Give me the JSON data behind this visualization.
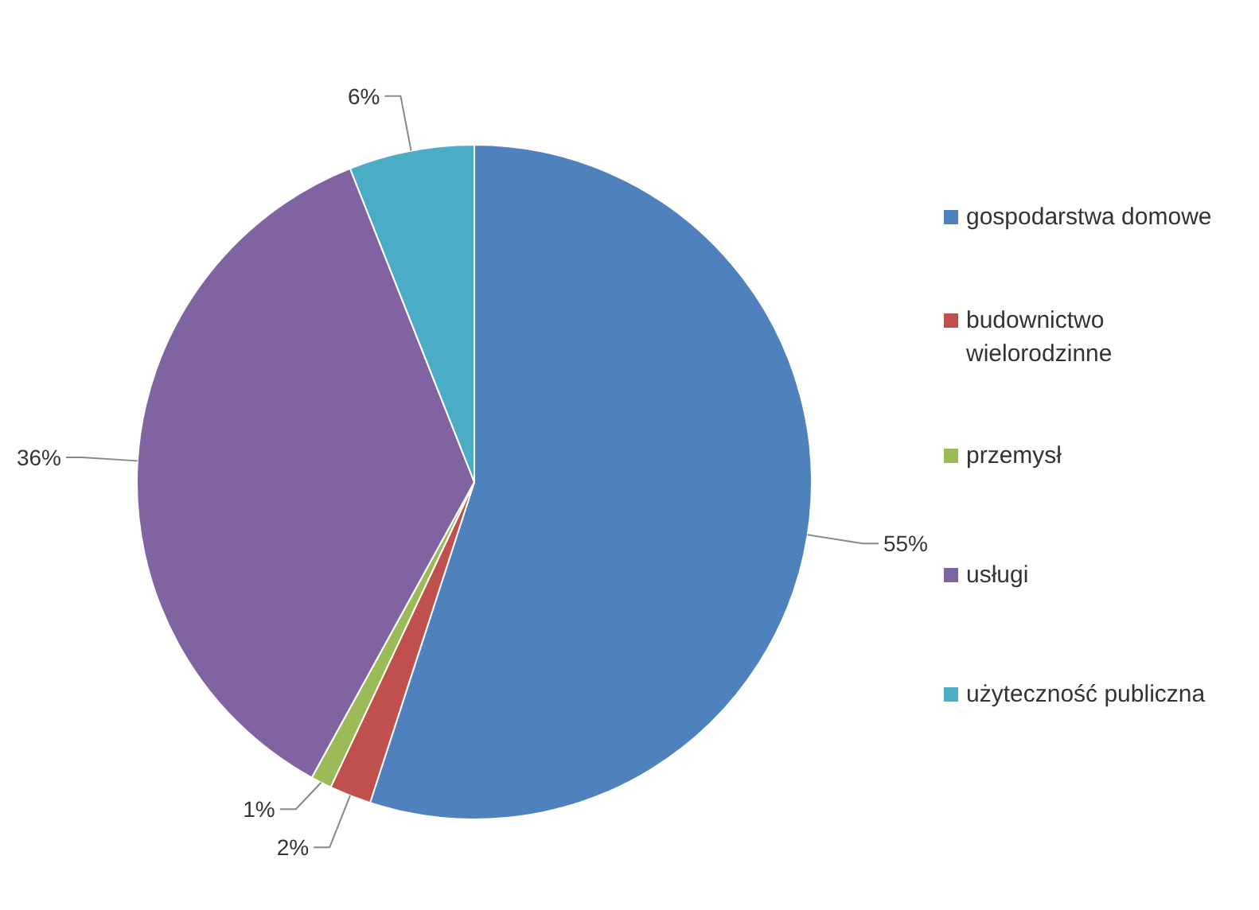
{
  "chart_data": {
    "type": "pie",
    "categories": [
      "gospodarstwa domowe",
      "budownictwo wielorodzinne",
      "przemysł",
      "usługi",
      "użyteczność publiczna"
    ],
    "values": [
      55,
      2,
      1,
      36,
      6
    ],
    "colors": [
      "#4f81bd",
      "#c0504d",
      "#9bbb59",
      "#8064a2",
      "#4bacc6"
    ],
    "value_labels": [
      "55%",
      "2%",
      "1%",
      "36%",
      "6%"
    ],
    "legend": "right"
  }
}
